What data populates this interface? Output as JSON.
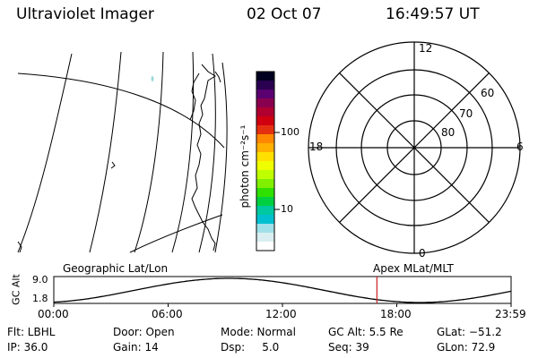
{
  "header": {
    "title": "Ultraviolet Imager",
    "date": "02 Oct 07",
    "time": "16:49:57 UT"
  },
  "map_panel": {
    "label": "Geographic Lat/Lon"
  },
  "colorbar": {
    "unit_label": "photon cm⁻²s⁻¹",
    "ticks": [
      "100",
      "10"
    ],
    "colors": [
      "#000020",
      "#2a0050",
      "#5a0070",
      "#8a0050",
      "#b00030",
      "#d00010",
      "#e43010",
      "#ff8800",
      "#ffb000",
      "#ffe000",
      "#f0ff00",
      "#c0ff00",
      "#80f000",
      "#30e000",
      "#00d040",
      "#00c8a0",
      "#00c0d0",
      "#a0e0e8",
      "#d8eef0",
      "#ffffff"
    ]
  },
  "polar_panel": {
    "label": "Apex MLat/MLT",
    "mlt_labels": {
      "top": "12",
      "left": "18",
      "right": "6",
      "bottom": "0"
    },
    "lat_labels": [
      "60",
      "70",
      "80"
    ]
  },
  "alt_strip": {
    "ylabel": "GC Alt",
    "ymax_label": "9.0",
    "ymin_label": "1.8",
    "x_ticks": [
      "00:00",
      "06:00",
      "12:00",
      "18:00",
      "23:59"
    ],
    "current_time_fraction": 0.7066,
    "current_color": "#cc2222"
  },
  "info": {
    "flt": "Flt: LBHL",
    "ip": "IP: 36.0",
    "door": "Door: Open",
    "gain": "Gain: 14",
    "mode": "Mode: Normal",
    "dsp": "Dsp:     5.0",
    "gcalt": "GC Alt: 5.5 Re",
    "seq": "Seq: 39",
    "glat": "GLat: −51.2",
    "glon": "GLon: 72.9"
  }
}
